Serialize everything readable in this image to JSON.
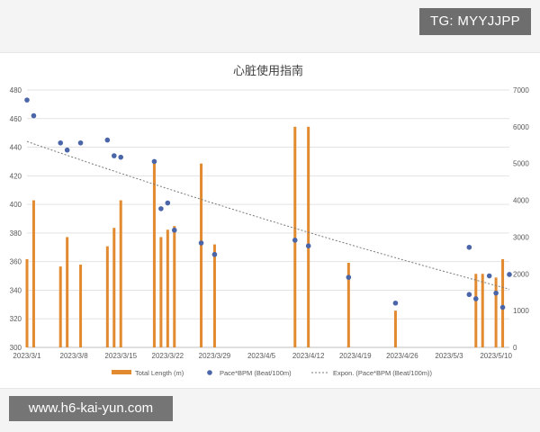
{
  "watermark_tg": "TG: MYYJJPP",
  "watermark_site": "www.h6-kai-yun.com",
  "colors": {
    "bar": "#e28a2f",
    "point": "#4a66a8",
    "trend": "#7a7a7a",
    "grid": "#e3e3e3",
    "axis_text": "#595959"
  },
  "chart_data": {
    "type": "bar",
    "title": "心脏使用指南",
    "x_start": "2023/3/1",
    "x_end": "2023/5/12",
    "x_tick_labels": [
      "2023/3/1",
      "2023/3/8",
      "2023/3/15",
      "2023/3/22",
      "2023/3/29",
      "2023/4/5",
      "2023/4/12",
      "2023/4/19",
      "2023/4/26",
      "2023/5/3",
      "2023/5/10"
    ],
    "y_left": {
      "min": 300,
      "max": 480,
      "ticks": [
        300,
        320,
        340,
        360,
        380,
        400,
        420,
        440,
        460,
        480
      ]
    },
    "y_right": {
      "min": 0,
      "max": 7000,
      "ticks": [
        0,
        1000,
        2000,
        3000,
        4000,
        5000,
        6000,
        7000
      ]
    },
    "grid": true,
    "legend_position": "bottom",
    "series": [
      {
        "name": "Total Length (m)",
        "kind": "bar",
        "axis": "right",
        "points": [
          {
            "x": "2023/3/1",
            "y": 2400
          },
          {
            "x": "2023/3/2",
            "y": 4000
          },
          {
            "x": "2023/3/6",
            "y": 2200
          },
          {
            "x": "2023/3/7",
            "y": 3000
          },
          {
            "x": "2023/3/9",
            "y": 2250
          },
          {
            "x": "2023/3/13",
            "y": 2750
          },
          {
            "x": "2023/3/14",
            "y": 3250
          },
          {
            "x": "2023/3/15",
            "y": 4000
          },
          {
            "x": "2023/3/20",
            "y": 5000
          },
          {
            "x": "2023/3/21",
            "y": 3000
          },
          {
            "x": "2023/3/22",
            "y": 3200
          },
          {
            "x": "2023/3/23",
            "y": 3300
          },
          {
            "x": "2023/3/27",
            "y": 5000
          },
          {
            "x": "2023/3/29",
            "y": 2800
          },
          {
            "x": "2023/4/10",
            "y": 6000
          },
          {
            "x": "2023/4/12",
            "y": 6000
          },
          {
            "x": "2023/4/18",
            "y": 2300
          },
          {
            "x": "2023/4/25",
            "y": 1000
          },
          {
            "x": "2023/5/7",
            "y": 2000
          },
          {
            "x": "2023/5/8",
            "y": 2000
          },
          {
            "x": "2023/5/10",
            "y": 1900
          },
          {
            "x": "2023/5/11",
            "y": 2400
          }
        ]
      },
      {
        "name": "Pace*BPM (Beat/100m)",
        "kind": "scatter",
        "axis": "left",
        "points": [
          {
            "x": "2023/3/1",
            "y": 473
          },
          {
            "x": "2023/3/2",
            "y": 462
          },
          {
            "x": "2023/3/6",
            "y": 443
          },
          {
            "x": "2023/3/7",
            "y": 438
          },
          {
            "x": "2023/3/9",
            "y": 443
          },
          {
            "x": "2023/3/13",
            "y": 445
          },
          {
            "x": "2023/3/14",
            "y": 434
          },
          {
            "x": "2023/3/15",
            "y": 433
          },
          {
            "x": "2023/3/20",
            "y": 430
          },
          {
            "x": "2023/3/21",
            "y": 397
          },
          {
            "x": "2023/3/22",
            "y": 401
          },
          {
            "x": "2023/3/23",
            "y": 382
          },
          {
            "x": "2023/3/27",
            "y": 373
          },
          {
            "x": "2023/3/29",
            "y": 365
          },
          {
            "x": "2023/4/10",
            "y": 375
          },
          {
            "x": "2023/4/12",
            "y": 371
          },
          {
            "x": "2023/4/18",
            "y": 349
          },
          {
            "x": "2023/4/25",
            "y": 331
          },
          {
            "x": "2023/5/6",
            "y": 370
          },
          {
            "x": "2023/5/6",
            "y": 337
          },
          {
            "x": "2023/5/7",
            "y": 334
          },
          {
            "x": "2023/5/9",
            "y": 350
          },
          {
            "x": "2023/5/10",
            "y": 338
          },
          {
            "x": "2023/5/11",
            "y": 328
          },
          {
            "x": "2023/5/12",
            "y": 351
          }
        ]
      },
      {
        "name": "Expon. (Pace*BPM (Beat/100m))",
        "kind": "trendline",
        "axis": "left",
        "points": [
          {
            "x": "2023/3/1",
            "y": 444
          },
          {
            "x": "2023/5/11",
            "y": 342
          }
        ]
      }
    ]
  }
}
